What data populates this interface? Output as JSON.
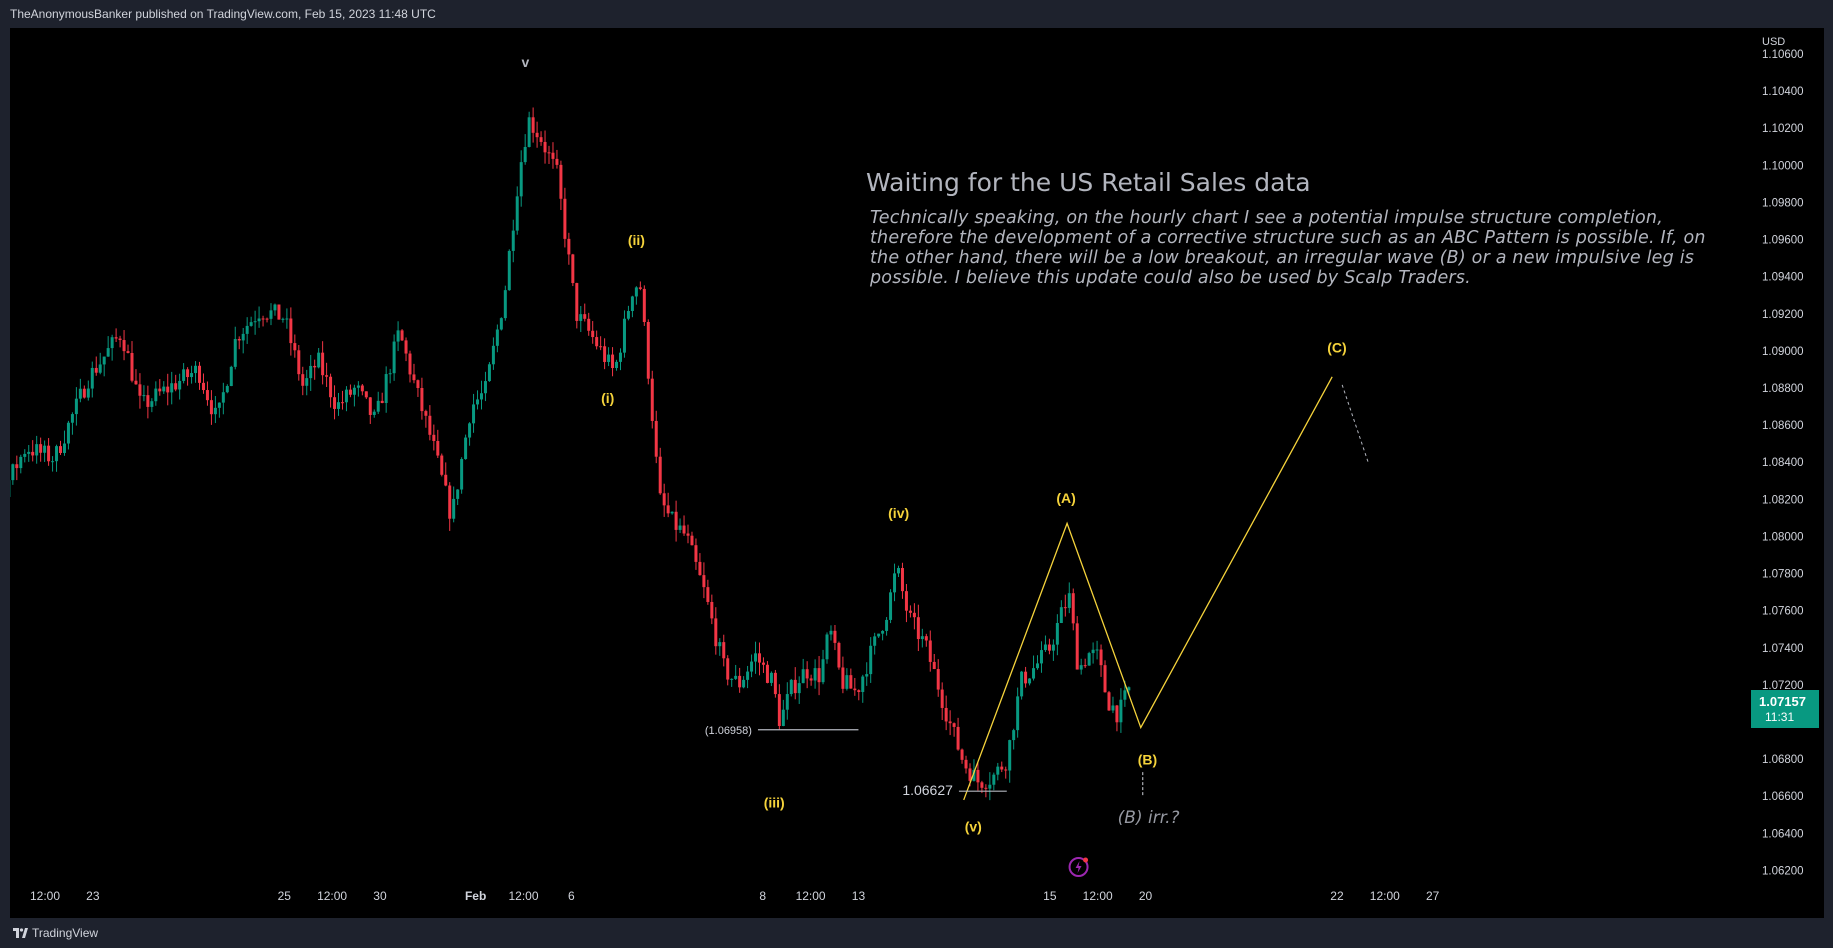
{
  "header": {
    "publisher_line": "TheAnonymousBanker published on TradingView.com, Feb 15, 2023 11:48 UTC"
  },
  "footer": {
    "brand": "TradingView"
  },
  "annotation": {
    "headline": "Waiting for the US Retail Sales data",
    "body": "Technically speaking, on the hourly chart I see a potential impulse structure completion, therefore the development of a corrective structure such as an ABC Pattern is possible. If, on the other hand, there will be a low breakout, an irregular wave (B) or a new impulsive leg is possible. I believe this update could also be used by Scalp Traders."
  },
  "price_tag": {
    "value": "1.07157",
    "countdown": "11:31"
  },
  "colors": {
    "up": "#089981",
    "down": "#f23645",
    "wave": "#f5d33b",
    "background": "#000000",
    "frame": "#1e222d",
    "text": "#d1d4dc",
    "muted": "#b2b5be"
  },
  "chart_data": {
    "type": "candlestick",
    "currency_label": "USD",
    "y_ticks": [
      "1.10600",
      "1.10400",
      "1.10200",
      "1.10000",
      "1.09800",
      "1.09600",
      "1.09400",
      "1.09200",
      "1.09000",
      "1.08800",
      "1.08600",
      "1.08400",
      "1.08200",
      "1.08000",
      "1.07800",
      "1.07600",
      "1.07400",
      "1.07200",
      "1.07000",
      "1.06800",
      "1.06600",
      "1.06400",
      "1.06200"
    ],
    "ylim": [
      1.0617,
      1.1074
    ],
    "x_ticks": [
      {
        "label": "12:00",
        "t": 0.5
      },
      {
        "label": "23",
        "t": 1
      },
      {
        "label": "25",
        "t": 3
      },
      {
        "label": "12:00",
        "t": 3.5
      },
      {
        "label": "30",
        "t": 4
      },
      {
        "label": "Feb",
        "t": 5
      },
      {
        "label": "12:00",
        "t": 5.5
      },
      {
        "label": "6",
        "t": 6
      },
      {
        "label": "8",
        "t": 8
      },
      {
        "label": "12:00",
        "t": 8.5
      },
      {
        "label": "13",
        "t": 9
      },
      {
        "label": "15",
        "t": 11
      },
      {
        "label": "12:00",
        "t": 11.5
      },
      {
        "label": "20",
        "t": 12
      },
      {
        "label": "22",
        "t": 14
      },
      {
        "label": "12:00",
        "t": 14.5
      },
      {
        "label": "27",
        "t": 15
      }
    ],
    "price_path": [
      [
        -0.5,
        1.0795
      ],
      [
        -0.1,
        1.0808
      ],
      [
        0.3,
        1.0848
      ],
      [
        0.6,
        1.0842
      ],
      [
        0.95,
        1.0885
      ],
      [
        1.3,
        1.091
      ],
      [
        1.5,
        1.087
      ],
      [
        1.85,
        1.0882
      ],
      [
        2.1,
        1.089
      ],
      [
        2.3,
        1.0862
      ],
      [
        2.5,
        1.0908
      ],
      [
        2.75,
        1.0922
      ],
      [
        3.0,
        1.0918
      ],
      [
        3.2,
        1.088
      ],
      [
        3.35,
        1.0895
      ],
      [
        3.55,
        1.087
      ],
      [
        3.75,
        1.088
      ],
      [
        3.95,
        1.0862
      ],
      [
        4.2,
        1.091
      ],
      [
        4.4,
        1.0875
      ],
      [
        4.55,
        1.085
      ],
      [
        4.75,
        1.081
      ],
      [
        4.95,
        1.087
      ],
      [
        5.1,
        1.0878
      ],
      [
        5.3,
        1.093
      ],
      [
        5.45,
        1.0995
      ],
      [
        5.55,
        1.1025
      ],
      [
        5.68,
        1.1015
      ],
      [
        5.85,
        1.0995
      ],
      [
        6.05,
        1.092
      ],
      [
        6.25,
        1.0905
      ],
      [
        6.45,
        1.0888
      ],
      [
        6.65,
        1.0936
      ],
      [
        6.72,
        1.0935
      ],
      [
        6.83,
        1.0875
      ],
      [
        6.92,
        1.082
      ],
      [
        7.05,
        1.0808
      ],
      [
        7.2,
        1.08
      ],
      [
        7.4,
        1.0768
      ],
      [
        7.6,
        1.0728
      ],
      [
        7.75,
        1.072
      ],
      [
        7.92,
        1.0736
      ],
      [
        8.1,
        1.0722
      ],
      [
        8.18,
        1.07
      ],
      [
        8.3,
        1.0718
      ],
      [
        8.45,
        1.0728
      ],
      [
        8.6,
        1.0725
      ],
      [
        8.7,
        1.075
      ],
      [
        8.82,
        1.0722
      ],
      [
        8.98,
        1.0716
      ],
      [
        9.1,
        1.0733
      ],
      [
        9.3,
        1.076
      ],
      [
        9.4,
        1.0783
      ],
      [
        9.52,
        1.0757
      ],
      [
        9.7,
        1.0741
      ],
      [
        9.82,
        1.0722
      ],
      [
        9.95,
        1.07
      ],
      [
        10.1,
        1.0678
      ],
      [
        10.25,
        1.0668
      ],
      [
        10.4,
        1.067
      ],
      [
        10.55,
        1.068
      ],
      [
        10.7,
        1.0722
      ],
      [
        10.85,
        1.073
      ],
      [
        11.0,
        1.074
      ],
      [
        11.12,
        1.0758
      ],
      [
        11.2,
        1.0768
      ],
      [
        11.3,
        1.0728
      ],
      [
        11.4,
        1.0737
      ],
      [
        11.5,
        1.0735
      ],
      [
        11.6,
        1.0712
      ],
      [
        11.72,
        1.0704
      ],
      [
        11.83,
        1.0718
      ]
    ],
    "wave_labels": [
      {
        "text": "v",
        "t": 5.52,
        "price": 1.1053,
        "color": "#b2b5be"
      },
      {
        "text": "(ii)",
        "t": 6.68,
        "price": 1.0957
      },
      {
        "text": "(i)",
        "t": 6.38,
        "price": 1.0872
      },
      {
        "text": "(iv)",
        "t": 9.42,
        "price": 1.081
      },
      {
        "text": "(iii)",
        "t": 8.12,
        "price": 1.0654
      },
      {
        "text": "(v)",
        "t": 10.2,
        "price": 1.0641
      },
      {
        "text": "(A)",
        "t": 11.17,
        "price": 1.0818
      },
      {
        "text": "(B)",
        "t": 12.02,
        "price": 1.0677
      },
      {
        "text": "(C)",
        "t": 14.0,
        "price": 1.0899
      }
    ],
    "projection": [
      [
        10.1,
        1.0658
      ],
      [
        11.18,
        1.0807
      ],
      [
        11.95,
        1.0697
      ],
      [
        13.95,
        1.0886
      ]
    ],
    "levels": [
      {
        "label": "(1.06958)",
        "price": 1.06958,
        "t_start": 7.95,
        "t_end": 9.0
      },
      {
        "label": "1.06627",
        "price": 1.06627,
        "t_start": 10.05,
        "t_end": 10.55
      }
    ],
    "irregular_label": "(B) irr.?"
  }
}
